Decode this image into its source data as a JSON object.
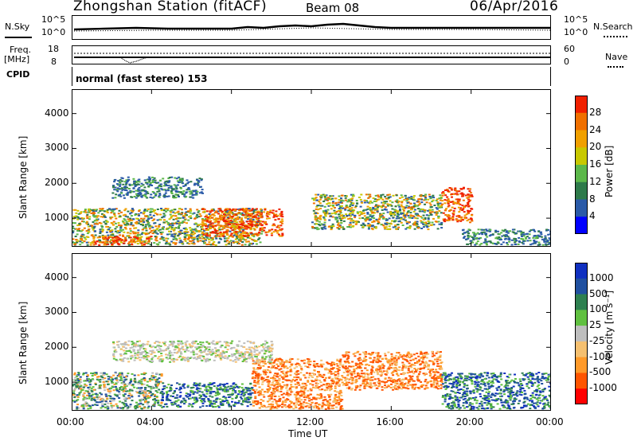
{
  "header": {
    "station": "Zhongshan Station (fitACF)",
    "beam": "Beam 08",
    "date": "06/Apr/2016"
  },
  "strip_labels": {
    "nsky": "N.Sky",
    "nsearch": "N.Search",
    "freq": "Freq.",
    "freq_unit": "[MHz]",
    "nave": "Nave",
    "cpid": "CPID",
    "cpid_value": "normal (fast stereo) 153"
  },
  "strip_ticks": {
    "noise_left_top": "10^5",
    "noise_left_bottom": "10^0",
    "noise_right_top": "10^5",
    "noise_right_bottom": "10^0",
    "freq_left_top": "18",
    "freq_left_bottom": "8",
    "nave_right_top": "60",
    "nave_right_bottom": "0"
  },
  "colors": {
    "power_scale": [
      "#0000ff",
      "#2a5aa8",
      "#2e7a4a",
      "#5cb84a",
      "#c8c800",
      "#f0a000",
      "#f07000",
      "#f02000"
    ],
    "velocity_scale": [
      "#ff0000",
      "#ff5500",
      "#ff9a2a",
      "#f5c070",
      "#bebebe",
      "#60c040",
      "#2e8050",
      "#2050a0",
      "#1030c0"
    ]
  },
  "chart_data": [
    {
      "type": "heatmap",
      "panel": "power",
      "x_ticks": [
        "00:00",
        "04:00",
        "08:00",
        "12:00",
        "16:00",
        "20:00",
        "00:00"
      ],
      "y_ticks": [
        "1000",
        "2000",
        "3000",
        "4000"
      ],
      "ylabel": "Slant Range [km]",
      "xlim": [
        0,
        24
      ],
      "ylim": [
        180,
        4700
      ],
      "colorbar": {
        "label": "Power [dB]",
        "ticks": [
          "4",
          "8",
          "12",
          "16",
          "20",
          "24",
          "28"
        ]
      },
      "features": [
        {
          "t0": 0.0,
          "t1": 9.5,
          "r0": 250,
          "r1": 1300,
          "level": "mixed"
        },
        {
          "t0": 1.0,
          "t1": 4.0,
          "r0": 250,
          "r1": 500,
          "level": "high"
        },
        {
          "t0": 6.5,
          "t1": 10.5,
          "r0": 500,
          "r1": 1300,
          "level": "high"
        },
        {
          "t0": 2.0,
          "t1": 6.5,
          "r0": 1600,
          "r1": 2200,
          "level": "low"
        },
        {
          "t0": 12.0,
          "t1": 18.5,
          "r0": 700,
          "r1": 1700,
          "level": "mixed"
        },
        {
          "t0": 18.5,
          "t1": 20.0,
          "r0": 900,
          "r1": 1900,
          "level": "high"
        },
        {
          "t0": 19.5,
          "t1": 24.0,
          "r0": 250,
          "r1": 700,
          "level": "low"
        }
      ]
    },
    {
      "type": "heatmap",
      "panel": "velocity",
      "x_ticks": [
        "00:00",
        "04:00",
        "08:00",
        "12:00",
        "16:00",
        "20:00",
        "00:00"
      ],
      "y_ticks": [
        "1000",
        "2000",
        "3000",
        "4000"
      ],
      "ylabel": "Slant Range [km]",
      "xlabel": "Time UT",
      "xlim": [
        0,
        24
      ],
      "ylim": [
        180,
        4700
      ],
      "colorbar": {
        "label": "Velocity [m s⁻¹]",
        "ticks": [
          "1000",
          "500",
          "100",
          "25",
          "-25",
          "-100",
          "-500",
          "-1000"
        ]
      },
      "features": [
        {
          "t0": 0.0,
          "t1": 4.5,
          "r0": 250,
          "r1": 1300,
          "level": "mixed"
        },
        {
          "t0": 4.5,
          "t1": 9.0,
          "r0": 300,
          "r1": 1000,
          "level": "positive"
        },
        {
          "t0": 9.0,
          "t1": 13.5,
          "r0": 250,
          "r1": 1700,
          "level": "negative"
        },
        {
          "t0": 2.0,
          "t1": 10.0,
          "r0": 1600,
          "r1": 2200,
          "level": "neutral"
        },
        {
          "t0": 13.5,
          "t1": 18.5,
          "r0": 800,
          "r1": 1900,
          "level": "negative"
        },
        {
          "t0": 18.5,
          "t1": 24.0,
          "r0": 250,
          "r1": 1300,
          "level": "positive"
        }
      ]
    }
  ]
}
